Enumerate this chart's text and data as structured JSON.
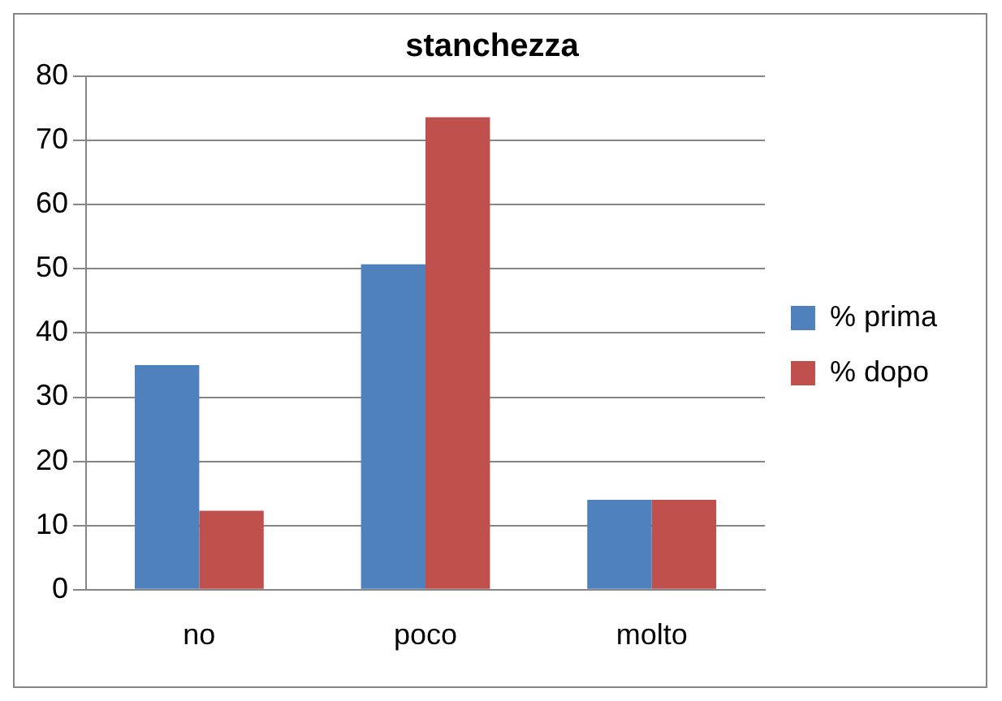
{
  "chart_data": {
    "type": "bar",
    "title": "stanchezza",
    "categories": [
      "no",
      "poco",
      "molto"
    ],
    "series": [
      {
        "name": "% prima",
        "color": "#4f81bd",
        "values": [
          35,
          50.7,
          14
        ]
      },
      {
        "name": "% dopo",
        "color": "#c0504d",
        "values": [
          12.3,
          73.6,
          14
        ]
      }
    ],
    "ylim": [
      0,
      80
    ],
    "yticks": [
      0,
      10,
      20,
      30,
      40,
      50,
      60,
      70,
      80
    ],
    "grid": "y",
    "legend": "right"
  }
}
